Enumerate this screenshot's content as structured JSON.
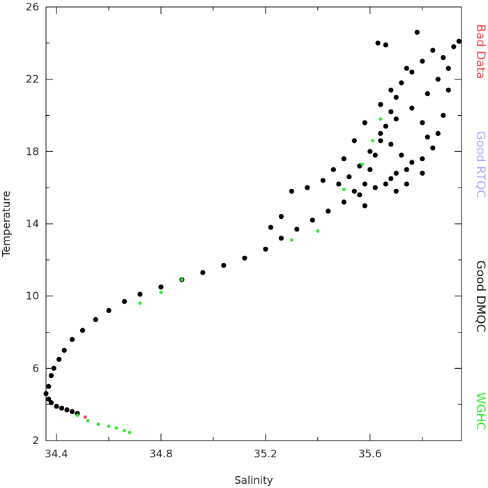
{
  "chart_data": {
    "type": "scatter",
    "xlabel": "Salinity",
    "ylabel": "Temperature",
    "xlim": [
      34.36,
      35.95
    ],
    "ylim": [
      2,
      26
    ],
    "xticks": [
      "34.4",
      "34.8",
      "35.2",
      "35.6"
    ],
    "yticks": [
      "2",
      "6",
      "10",
      "14",
      "18",
      "22",
      "26"
    ],
    "grid": false,
    "legend_placement": "right",
    "legend": [
      {
        "label": "Bad Data",
        "color": "#ff3b3b"
      },
      {
        "label": "Good RTQC",
        "color": "#a7a7ff"
      },
      {
        "label": "Good DMQC",
        "color": "#111111"
      },
      {
        "label": "WGHC",
        "color": "#22ee22"
      }
    ],
    "series": [
      {
        "name": "Good DMQC",
        "color": "#000000",
        "points": [
          [
            34.37,
            5.0
          ],
          [
            34.36,
            4.6
          ],
          [
            34.37,
            4.3
          ],
          [
            34.38,
            4.1
          ],
          [
            34.4,
            3.9
          ],
          [
            34.42,
            3.8
          ],
          [
            34.44,
            3.7
          ],
          [
            34.46,
            3.6
          ],
          [
            34.48,
            3.5
          ],
          [
            34.38,
            5.6
          ],
          [
            34.39,
            6.0
          ],
          [
            34.41,
            6.5
          ],
          [
            34.43,
            7.0
          ],
          [
            34.46,
            7.6
          ],
          [
            34.5,
            8.1
          ],
          [
            34.55,
            8.7
          ],
          [
            34.6,
            9.2
          ],
          [
            34.66,
            9.7
          ],
          [
            34.72,
            10.1
          ],
          [
            34.8,
            10.5
          ],
          [
            34.88,
            10.9
          ],
          [
            34.96,
            11.3
          ],
          [
            35.04,
            11.7
          ],
          [
            35.12,
            12.1
          ],
          [
            35.2,
            12.6
          ],
          [
            35.26,
            13.2
          ],
          [
            35.32,
            13.7
          ],
          [
            35.38,
            14.2
          ],
          [
            35.44,
            14.7
          ],
          [
            35.5,
            15.2
          ],
          [
            35.56,
            15.6
          ],
          [
            35.62,
            16.0
          ],
          [
            35.68,
            16.5
          ],
          [
            35.74,
            17.0
          ],
          [
            35.8,
            17.6
          ],
          [
            35.84,
            18.2
          ],
          [
            35.54,
            15.8
          ],
          [
            35.58,
            16.2
          ],
          [
            35.6,
            17.0
          ],
          [
            35.62,
            17.8
          ],
          [
            35.64,
            18.6
          ],
          [
            35.66,
            19.4
          ],
          [
            35.68,
            20.2
          ],
          [
            35.7,
            21.0
          ],
          [
            35.72,
            21.8
          ],
          [
            35.76,
            22.4
          ],
          [
            35.8,
            23.0
          ],
          [
            35.84,
            23.6
          ],
          [
            35.88,
            23.2
          ],
          [
            35.9,
            22.6
          ],
          [
            35.92,
            23.8
          ],
          [
            35.94,
            24.1
          ],
          [
            35.78,
            24.6
          ],
          [
            35.63,
            24.0
          ],
          [
            35.66,
            23.9
          ],
          [
            35.74,
            22.6
          ],
          [
            35.7,
            19.8
          ],
          [
            35.76,
            20.4
          ],
          [
            35.82,
            21.2
          ],
          [
            35.86,
            19.0
          ],
          [
            35.8,
            19.6
          ],
          [
            35.72,
            17.8
          ],
          [
            35.68,
            18.4
          ],
          [
            35.64,
            19.0
          ],
          [
            35.6,
            18.0
          ],
          [
            35.56,
            17.2
          ],
          [
            35.52,
            16.6
          ],
          [
            35.48,
            16.2
          ],
          [
            35.42,
            16.4
          ],
          [
            35.36,
            16.0
          ],
          [
            35.3,
            15.8
          ],
          [
            35.26,
            14.4
          ],
          [
            35.22,
            13.8
          ],
          [
            35.58,
            15.0
          ],
          [
            35.66,
            16.2
          ],
          [
            35.7,
            16.8
          ],
          [
            35.76,
            17.4
          ],
          [
            35.82,
            18.8
          ],
          [
            35.88,
            20.0
          ],
          [
            35.9,
            21.4
          ],
          [
            35.86,
            22.0
          ],
          [
            35.68,
            21.4
          ],
          [
            35.64,
            20.6
          ],
          [
            35.58,
            19.6
          ],
          [
            35.54,
            18.6
          ],
          [
            35.5,
            17.6
          ],
          [
            35.46,
            17.0
          ],
          [
            35.7,
            15.8
          ],
          [
            35.74,
            16.2
          ],
          [
            35.8,
            16.8
          ]
        ]
      },
      {
        "name": "WGHC",
        "color": "#22ee22",
        "points": [
          [
            34.48,
            3.4
          ],
          [
            34.52,
            3.1
          ],
          [
            34.56,
            2.9
          ],
          [
            34.6,
            2.8
          ],
          [
            34.63,
            2.7
          ],
          [
            34.66,
            2.55
          ],
          [
            34.68,
            2.45
          ],
          [
            34.72,
            9.6
          ],
          [
            34.8,
            10.2
          ],
          [
            34.88,
            10.9
          ],
          [
            35.3,
            13.1
          ],
          [
            35.4,
            13.6
          ],
          [
            35.5,
            15.9
          ],
          [
            35.57,
            17.3
          ],
          [
            35.61,
            18.6
          ],
          [
            35.64,
            19.8
          ]
        ]
      },
      {
        "name": "Bad Data",
        "color": "#ff3b3b",
        "points": [
          [
            34.51,
            3.3
          ]
        ]
      }
    ]
  }
}
